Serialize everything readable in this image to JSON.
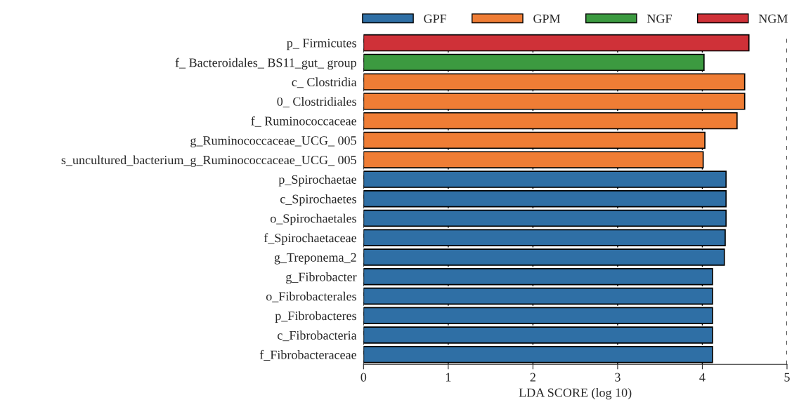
{
  "chart_data": {
    "type": "bar",
    "orientation": "horizontal",
    "xlabel": "LDA SCORE (log 10)",
    "categories": [
      "p_ Firmicutes",
      "f_ Bacteroidales_ BS11_gut_ group",
      "c_ Clostridia",
      "0_ Clostridiales",
      "f_ Ruminococcaceae",
      "g_Ruminococcaceae_UCG_ 005",
      "s_uncultured_bacterium_g_Ruminococcaceae_UCG_ 005",
      "p_Spirochaetae",
      "c_Spirochaetes",
      "o_Spirochaetales",
      "f_Spirochaetaceae",
      "g_Treponema_2",
      "g_Fibrobacter",
      "o_Fibrobacterales",
      "p_Fibrobacteres",
      "c_Fibrobacteria",
      "f_Fibrobacteraceae"
    ],
    "series": [
      {
        "name": "GPF",
        "color": "#2f6fa5",
        "values": [
          null,
          null,
          null,
          null,
          null,
          null,
          null,
          4.28,
          4.28,
          4.28,
          4.27,
          4.26,
          4.12,
          4.12,
          4.12,
          4.12,
          4.12
        ]
      },
      {
        "name": "GPM",
        "color": "#ef7d35",
        "values": [
          null,
          null,
          4.5,
          4.5,
          4.41,
          4.03,
          4.01,
          null,
          null,
          null,
          null,
          null,
          null,
          null,
          null,
          null,
          null
        ]
      },
      {
        "name": "NGF",
        "color": "#3c9a40",
        "values": [
          null,
          4.02,
          null,
          null,
          null,
          null,
          null,
          null,
          null,
          null,
          null,
          null,
          null,
          null,
          null,
          null,
          null
        ]
      },
      {
        "name": "NGM",
        "color": "#cf3138",
        "values": [
          4.55,
          null,
          null,
          null,
          null,
          null,
          null,
          null,
          null,
          null,
          null,
          null,
          null,
          null,
          null,
          null,
          null
        ]
      }
    ],
    "xlim": [
      0,
      5
    ],
    "xticks": [
      0,
      1,
      2,
      3,
      4,
      5
    ],
    "grid": "x",
    "legend": "top"
  }
}
